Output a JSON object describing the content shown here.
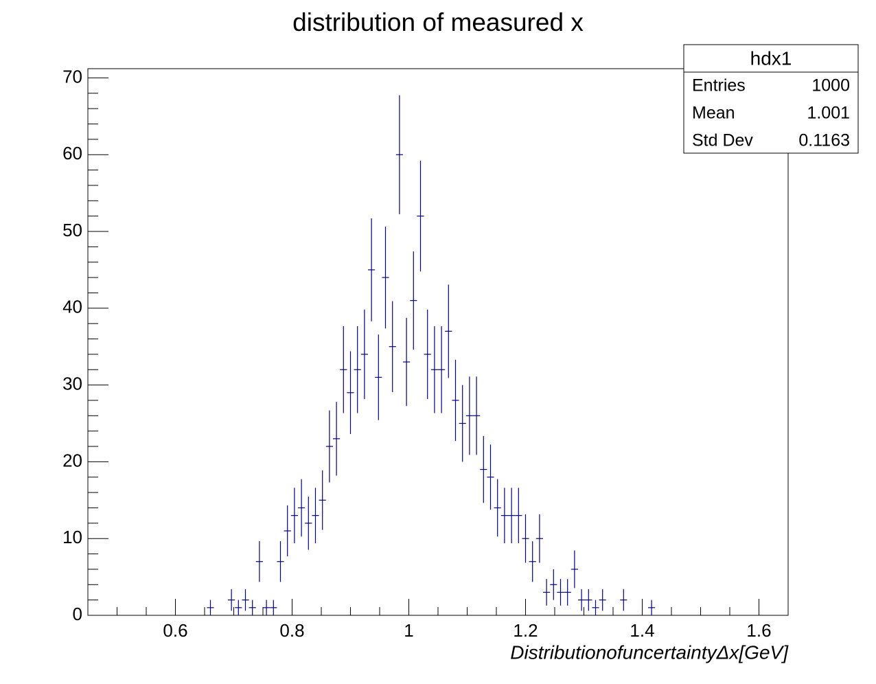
{
  "chart_data": {
    "type": "histogram",
    "title": "distribution of measured x",
    "x_label": "DistributionofuncertaintyΔx[GeV]",
    "color": "#000080",
    "bins": [
      0.45,
      0.462,
      0.474,
      0.486,
      0.498,
      0.51,
      0.522,
      0.534,
      0.546,
      0.558,
      0.57,
      0.582,
      0.594,
      0.606,
      0.618,
      0.63,
      0.642,
      0.654,
      0.666,
      0.678,
      0.69,
      0.702,
      0.714,
      0.726,
      0.738,
      0.75,
      0.762,
      0.774,
      0.786,
      0.798,
      0.81,
      0.822,
      0.834,
      0.846,
      0.858,
      0.87,
      0.882,
      0.894,
      0.906,
      0.918,
      0.93,
      0.942,
      0.954,
      0.966,
      0.978,
      0.99,
      1.002,
      1.014,
      1.026,
      1.038,
      1.05,
      1.062,
      1.074,
      1.086,
      1.098,
      1.11,
      1.122,
      1.134,
      1.146,
      1.158,
      1.17,
      1.182,
      1.194,
      1.206,
      1.218,
      1.23,
      1.242,
      1.254,
      1.266,
      1.278,
      1.29,
      1.302,
      1.314,
      1.326,
      1.338,
      1.35,
      1.362,
      1.374,
      1.386,
      1.398,
      1.41,
      1.422,
      1.434,
      1.446,
      1.458,
      1.47,
      1.482,
      1.494,
      1.506,
      1.518,
      1.53,
      1.542,
      1.554,
      1.566,
      1.578,
      1.59,
      1.602,
      1.614,
      1.626,
      1.638,
      1.65
    ],
    "counts": [
      0,
      0,
      0,
      0,
      0,
      0,
      0,
      0,
      0,
      0,
      0,
      0,
      0,
      0,
      0,
      0,
      0,
      1,
      0,
      0,
      2,
      1,
      2,
      1,
      7,
      1,
      1,
      7,
      11,
      13,
      14,
      12,
      13,
      15,
      22,
      23,
      32,
      29,
      32,
      34,
      45,
      31,
      44,
      35,
      60,
      33,
      41,
      52,
      34,
      32,
      32,
      37,
      28,
      25,
      26,
      26,
      19,
      18,
      14,
      13,
      13,
      13,
      10,
      7,
      10,
      3,
      4,
      3,
      3,
      6,
      2,
      2,
      1,
      2,
      0,
      0,
      2,
      0,
      0,
      0,
      1,
      0,
      0,
      0,
      0,
      0,
      0,
      0,
      0,
      0,
      0,
      0,
      0,
      0,
      0,
      0,
      0,
      0,
      0,
      0
    ],
    "errors": [
      0,
      0,
      0,
      0,
      0,
      0,
      0,
      0,
      0,
      0,
      0,
      0,
      0,
      0,
      0,
      0,
      0,
      1,
      0,
      0,
      1.41,
      1,
      1.41,
      1,
      2.65,
      1,
      1,
      2.65,
      3.32,
      3.61,
      3.74,
      3.46,
      3.61,
      3.87,
      4.69,
      4.8,
      5.66,
      5.39,
      5.66,
      5.83,
      6.71,
      5.57,
      6.63,
      5.92,
      7.75,
      5.74,
      6.4,
      7.21,
      5.83,
      5.66,
      5.66,
      6.08,
      5.29,
      5,
      5.1,
      5.1,
      4.36,
      4.24,
      3.74,
      3.61,
      3.61,
      3.61,
      3.16,
      2.65,
      3.16,
      1.73,
      2,
      1.73,
      1.73,
      2.45,
      1.41,
      1.41,
      1,
      1.41,
      0,
      0,
      1.41,
      0,
      0,
      0,
      1,
      0,
      0,
      0,
      0,
      0,
      0,
      0,
      0,
      0,
      0,
      0,
      0,
      0,
      0,
      0,
      0,
      0,
      0,
      0
    ],
    "xlim": [
      0.45,
      1.65
    ],
    "ylim": [
      0,
      71.2
    ],
    "xticks": [
      0.6,
      0.8,
      1,
      1.2,
      1.4,
      1.6
    ],
    "xminorticks": [
      0.5,
      0.55,
      0.65,
      0.7,
      0.75,
      0.85,
      0.9,
      0.95,
      1.05,
      1.1,
      1.15,
      1.25,
      1.3,
      1.35,
      1.45,
      1.5,
      1.55,
      1.65
    ],
    "yticks": [
      0,
      10,
      20,
      30,
      40,
      50,
      60,
      70
    ],
    "yminorticks": [
      2,
      4,
      6,
      8,
      12,
      14,
      16,
      18,
      22,
      24,
      26,
      28,
      32,
      34,
      36,
      38,
      42,
      44,
      46,
      48,
      52,
      54,
      56,
      58,
      62,
      64,
      66,
      68
    ],
    "stats": {
      "title": "hdx1",
      "rows": [
        {
          "label": "Entries",
          "value": 1000
        },
        {
          "label": "Mean",
          "value": 1.001
        },
        {
          "label": "Std Dev",
          "value": 0.1163
        }
      ]
    }
  }
}
